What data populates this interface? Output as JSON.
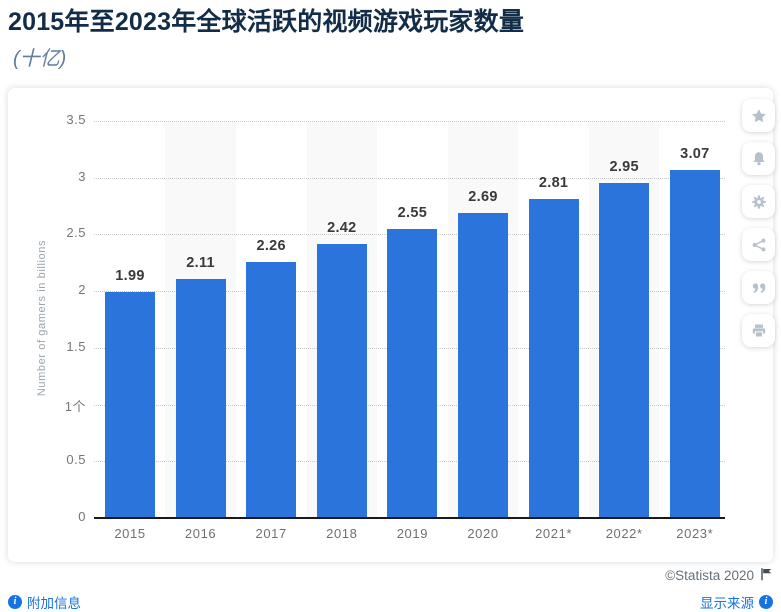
{
  "header": {
    "title": "2015年至2023年全球活跃的视频游戏玩家数量",
    "subtitle": "(十亿)"
  },
  "chart_data": {
    "type": "bar",
    "title": "2015年至2023年全球活跃的视频游戏玩家数量",
    "subtitle_unit": "(十亿)",
    "categories": [
      "2015",
      "2016",
      "2017",
      "2018",
      "2019",
      "2020",
      "2021*",
      "2022*",
      "2023*"
    ],
    "values": [
      1.99,
      2.11,
      2.26,
      2.42,
      2.55,
      2.69,
      2.81,
      2.95,
      3.07
    ],
    "value_labels": [
      "1.99",
      "2.11",
      "2.26",
      "2.42",
      "2.55",
      "2.69",
      "2.81",
      "2.95",
      "3.07"
    ],
    "xlabel": "",
    "ylabel": "Number of gamers in billions",
    "ylim": [
      0,
      3.5
    ],
    "y_ticks": [
      {
        "label": "3.5",
        "v": 3.5
      },
      {
        "label": "3",
        "v": 3
      },
      {
        "label": "2.5",
        "v": 2.5
      },
      {
        "label": "2",
        "v": 2
      },
      {
        "label": "1.5",
        "v": 1.5
      },
      {
        "label": "1个",
        "v": 1
      },
      {
        "label": "0.5",
        "v": 0.5
      },
      {
        "label": "0",
        "v": 0
      }
    ],
    "grid": "horizontal-dotted",
    "legend": "none",
    "bar_color": "#2a74dc",
    "stripe_color": "#f9f9f9"
  },
  "toolbar": {
    "icons": [
      "star-icon",
      "bell-icon",
      "gear-icon",
      "share-icon",
      "quote-icon",
      "print-icon"
    ]
  },
  "footer": {
    "copyright": "©Statista 2020",
    "additional_info": "附加信息",
    "show_source": "显示来源",
    "link_color": "#1574e0"
  }
}
